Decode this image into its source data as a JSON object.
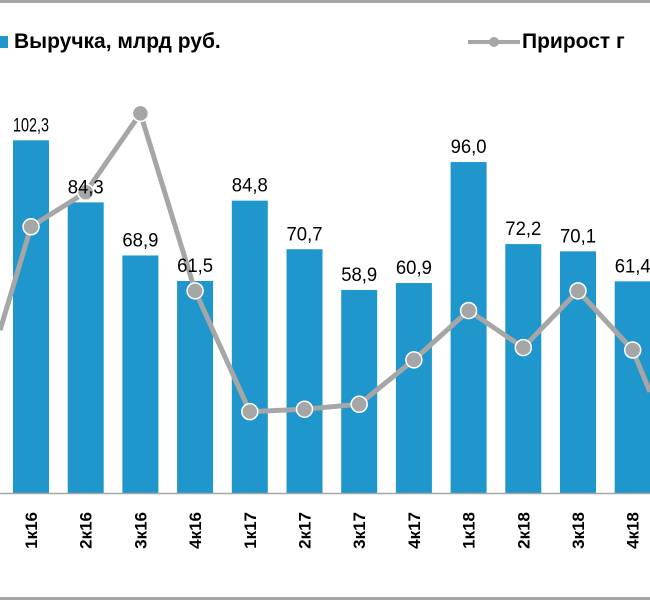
{
  "chart_data": {
    "type": "bar+line",
    "categories": [
      "1к16",
      "2к16",
      "3к16",
      "4к16",
      "1к17",
      "2к17",
      "3к17",
      "4к17",
      "1к18",
      "2к18",
      "3к18",
      "4к18"
    ],
    "series": [
      {
        "name": "Выручка, млрд руб.",
        "type": "bar",
        "color": "#1f96cc",
        "values": [
          102.3,
          84.3,
          68.9,
          61.5,
          84.8,
          70.7,
          58.9,
          60.9,
          96.0,
          72.2,
          70.1,
          61.4
        ],
        "labels": [
          "102,3",
          "84,3",
          "68,9",
          "61,5",
          "84,8",
          "70,7",
          "58,9",
          "60,9",
          "96,0",
          "72,2",
          "70,1",
          "61,4"
        ]
      },
      {
        "name": "Прирост г",
        "type": "line",
        "color": "#a6a6a6",
        "note": "secondary axis not visible; values estimated on a 0-100 relative scale",
        "values": [
          54,
          61,
          77,
          41,
          16.5,
          17,
          18,
          27,
          37,
          29.5,
          41,
          29
        ],
        "lead_in_value": 33,
        "lead_out_value": 20.5
      }
    ],
    "ylim": [
      0,
      143
    ],
    "y2lim": [
      0,
      100
    ],
    "grid": false,
    "legend_position": "top"
  }
}
